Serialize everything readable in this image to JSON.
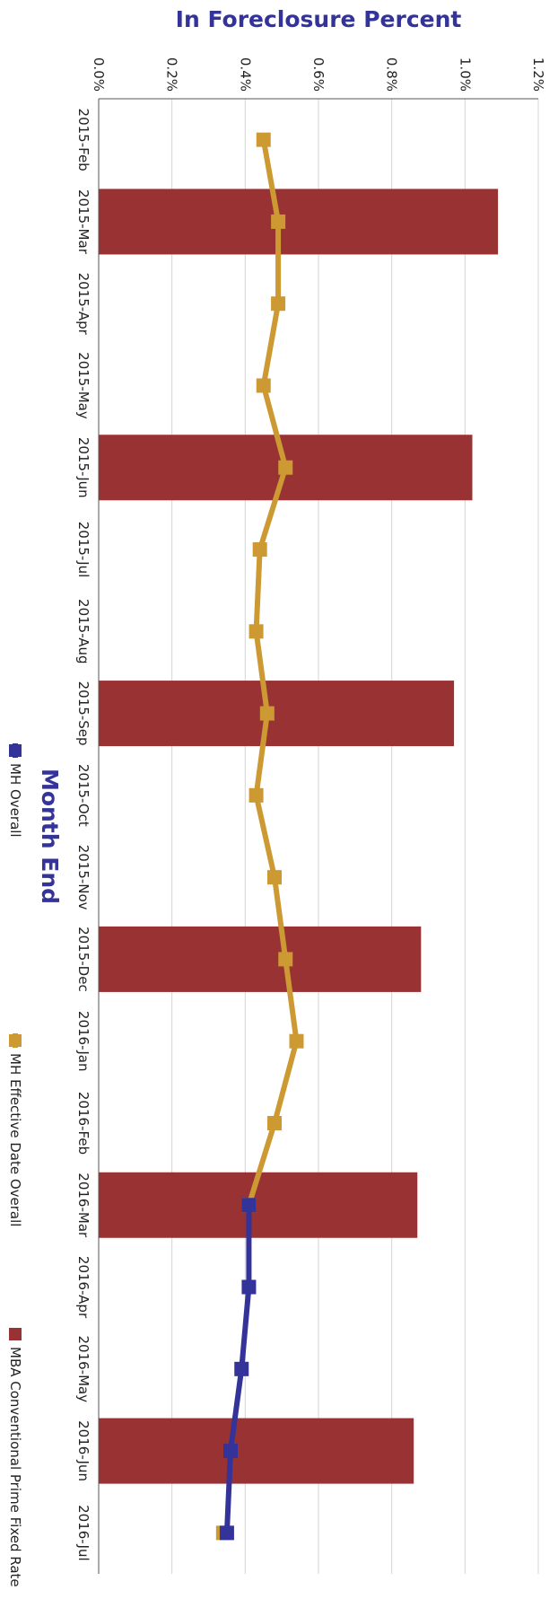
{
  "chart_data": {
    "type": "bar+line",
    "title": "",
    "xlabel": "Month End",
    "ylabel": "In Foreclosure Percent",
    "categories": [
      "2015-Feb",
      "2015-Mar",
      "2015-Apr",
      "2015-May",
      "2015-Jun",
      "2015-Jul",
      "2015-Aug",
      "2015-Sep",
      "2015-Oct",
      "2015-Nov",
      "2015-Dec",
      "2016-Jan",
      "2016-Feb",
      "2016-Mar",
      "2016-Apr",
      "2016-May",
      "2016-Jun",
      "2016-Jul"
    ],
    "ylim": [
      0,
      1.2
    ],
    "yticks": [
      "0.0%",
      "0.2%",
      "0.4%",
      "0.6%",
      "0.8%",
      "1.0%",
      "1.2%"
    ],
    "grid": true,
    "legend_position": "bottom",
    "series": [
      {
        "name": "MH Overall",
        "kind": "line",
        "color": "#333399",
        "values": [
          null,
          null,
          null,
          null,
          null,
          null,
          null,
          null,
          null,
          null,
          null,
          null,
          null,
          0.41,
          0.41,
          0.39,
          0.36,
          0.35
        ]
      },
      {
        "name": "MH Effective Date Overall",
        "kind": "line",
        "color": "#cc9933",
        "values": [
          0.45,
          0.49,
          0.49,
          0.45,
          0.51,
          0.44,
          0.43,
          0.46,
          0.43,
          0.48,
          0.51,
          0.54,
          0.48,
          0.41,
          null,
          null,
          null,
          0.34
        ]
      },
      {
        "name": "MBA Conventional Prime Fixed Rate",
        "kind": "bar",
        "color": "#993333",
        "values": [
          null,
          1.09,
          null,
          null,
          1.02,
          null,
          null,
          0.97,
          null,
          null,
          0.88,
          null,
          null,
          0.87,
          null,
          null,
          0.86,
          null
        ]
      }
    ]
  }
}
